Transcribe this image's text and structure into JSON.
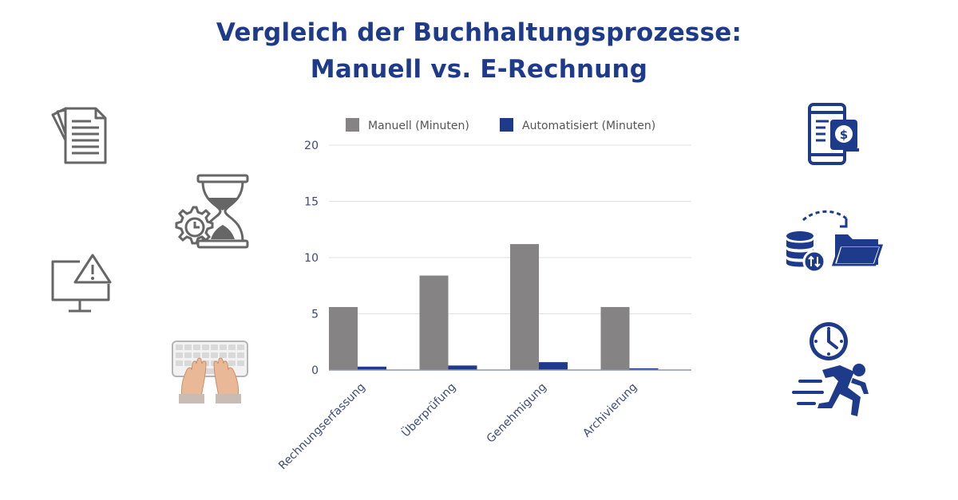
{
  "title": {
    "line1": "Vergleich der Buchhaltungsprozesse:",
    "line2": "Manuell vs. E-Rechnung"
  },
  "colors": {
    "title": "#1e3a8a",
    "manual": "#858383",
    "automated": "#1e3a8a",
    "icon_gray": "#666666",
    "icon_blue": "#1e3a8a"
  },
  "icons": {
    "left": [
      "documents-icon",
      "hourglass-gear-icon",
      "monitor-warning-icon",
      "typing-keyboard-icon"
    ],
    "right": [
      "mobile-payment-icon",
      "database-transfer-folder-icon",
      "clock-running-person-icon"
    ]
  },
  "chart_data": {
    "type": "bar",
    "categories": [
      "Rechnungserfassung",
      "Überprüfung",
      "Genehmigung",
      "Archivierung"
    ],
    "series": [
      {
        "name": "Manuell (Minuten)",
        "values": [
          5.6,
          8.4,
          11.2,
          5.6
        ],
        "color": "#858383"
      },
      {
        "name": "Automatisiert (Minuten)",
        "values": [
          0.3,
          0.4,
          0.7,
          0.15
        ],
        "color": "#1e3a8a"
      }
    ],
    "ylim": [
      0,
      20
    ],
    "yticks": [
      0,
      5,
      10,
      15,
      20
    ],
    "grid": true,
    "legend": "top"
  }
}
